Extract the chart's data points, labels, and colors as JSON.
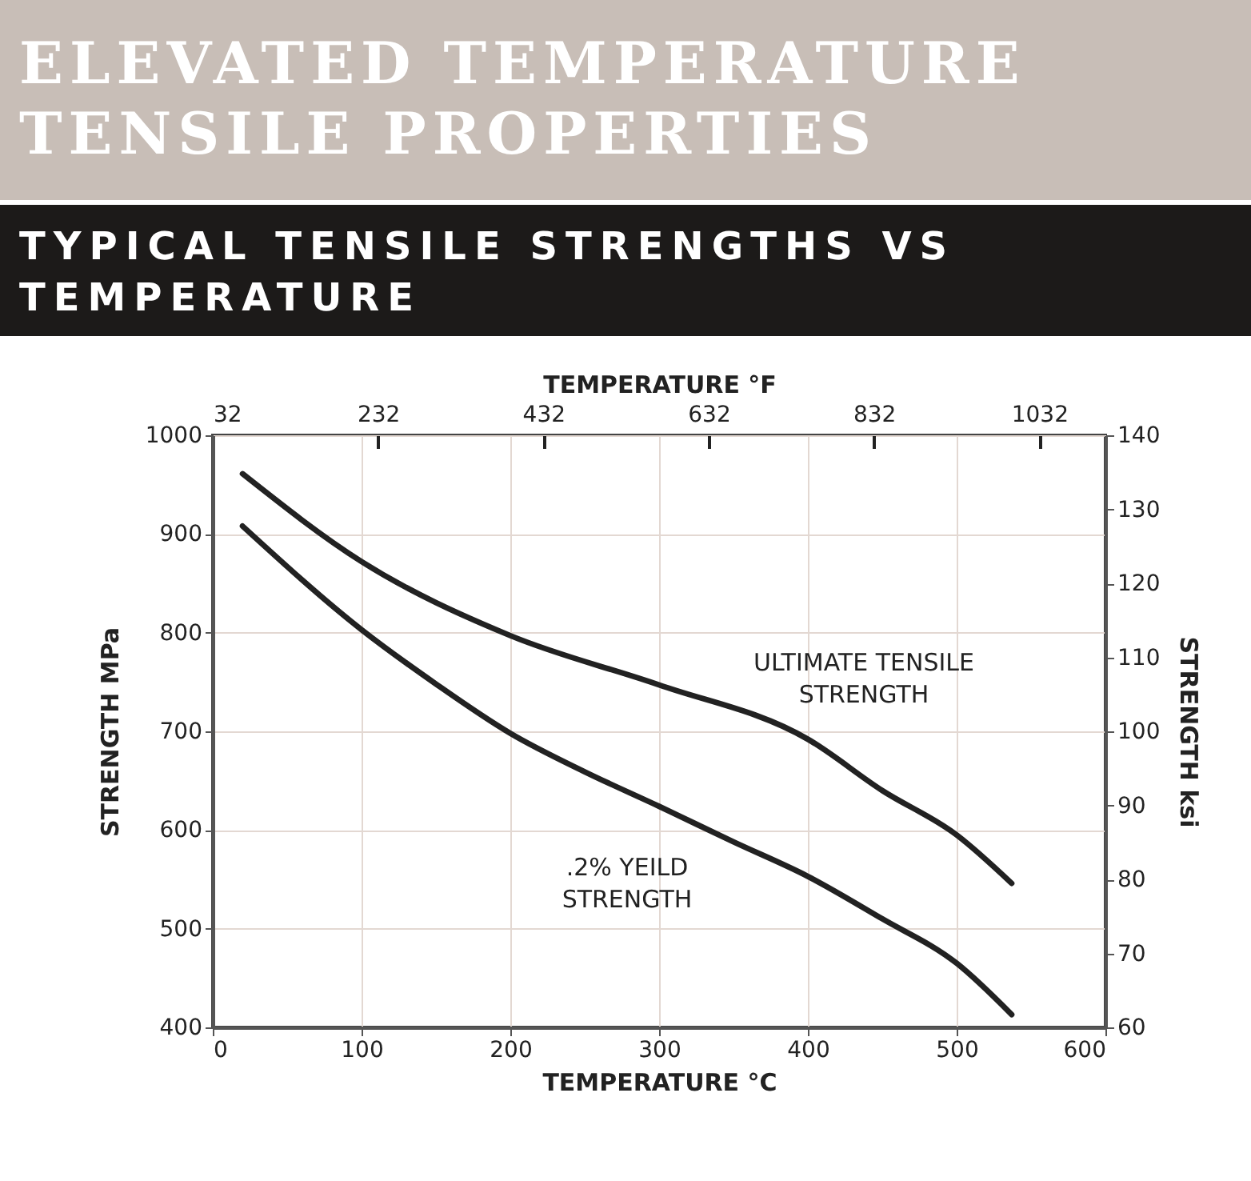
{
  "chart_data": {
    "type": "line",
    "title": "ELEVATED TEMPERATURE TENSILE PROPERTIES",
    "subtitle": "TYPICAL TENSILE STRENGTHS VS TEMPERATURE",
    "xlabel": "TEMPERATURE °C",
    "x2label": "TEMPERATURE °F",
    "ylabel": "STRENGTH MPa",
    "y2label": "STRENGTH ksi",
    "xlim": [
      0,
      600
    ],
    "xticks": [
      0,
      100,
      200,
      300,
      400,
      500,
      600
    ],
    "x2lim": [
      32,
      1112
    ],
    "x2ticks": [
      32,
      232,
      432,
      632,
      832,
      1032
    ],
    "ylim": [
      400,
      1000
    ],
    "yticks": [
      400,
      500,
      600,
      700,
      800,
      900,
      1000
    ],
    "y2lim": [
      60,
      140
    ],
    "y2ticks": [
      60,
      70,
      80,
      90,
      100,
      110,
      120,
      130,
      140
    ],
    "grid": true,
    "series": [
      {
        "name": "ULTIMATE TENSILE\nSTRENGTH",
        "color": "#222222",
        "x": [
          20,
          100,
          200,
          300,
          400,
          450,
          500,
          537
        ],
        "values": [
          961,
          872,
          797,
          747,
          692,
          640,
          595,
          546
        ]
      },
      {
        "name": ".2% YEILD\nSTRENGTH",
        "color": "#222222",
        "x": [
          20,
          100,
          150,
          200,
          250,
          300,
          350,
          400,
          450,
          500,
          537
        ],
        "values": [
          908,
          803,
          748,
          698,
          659,
          624,
          588,
          553,
          510,
          465,
          413
        ]
      }
    ]
  }
}
